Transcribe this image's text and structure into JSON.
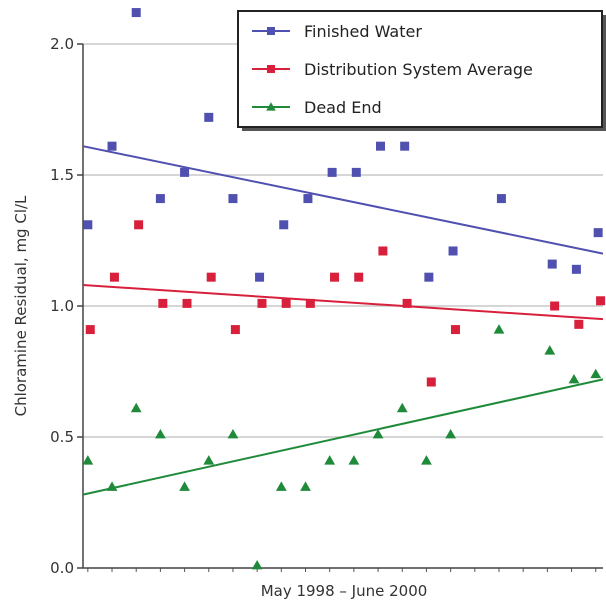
{
  "chart_data": {
    "type": "scatter",
    "title": "",
    "xlabel": "May 1998 – June 2000",
    "ylabel": "Chloramine Residual, mg Cl/L",
    "ylim": [
      0,
      2.0
    ],
    "xlim": [
      0,
      21.5
    ],
    "yticks": [
      "0.0",
      "0.5",
      "1.0",
      "1.5",
      "2.0"
    ],
    "grid": "horizontal",
    "legend": "top-right",
    "series": [
      {
        "name": "Finished Water",
        "color": "#5050b0",
        "marker": "square",
        "x": [
          0.2,
          1.2,
          2.2,
          3.2,
          4.2,
          5.2,
          6.2,
          7.3,
          8.3,
          9.3,
          10.3,
          11.3,
          12.3,
          13.3,
          14.3,
          15.3,
          17.3,
          19.4,
          20.4,
          21.3
        ],
        "y": [
          1.31,
          1.61,
          2.12,
          1.41,
          1.51,
          1.72,
          1.41,
          1.11,
          1.31,
          1.41,
          1.51,
          1.51,
          1.61,
          1.61,
          1.11,
          1.21,
          1.41,
          1.16,
          1.14,
          1.28
        ],
        "trend": [
          [
            0,
            1.61
          ],
          [
            21.5,
            1.2
          ]
        ]
      },
      {
        "name": "Distribution System Average",
        "color": "#d8203c",
        "marker": "square",
        "x": [
          0.3,
          1.3,
          2.3,
          3.3,
          4.3,
          5.3,
          6.3,
          7.4,
          8.4,
          9.4,
          10.4,
          11.4,
          12.4,
          13.4,
          14.4,
          15.4,
          19.5,
          20.5,
          21.4
        ],
        "y": [
          0.91,
          1.11,
          1.31,
          1.01,
          1.01,
          1.11,
          0.91,
          1.01,
          1.01,
          1.01,
          1.11,
          1.11,
          1.21,
          1.01,
          0.71,
          0.91,
          1.0,
          0.93,
          1.02
        ],
        "trend": [
          [
            0,
            1.08
          ],
          [
            21.5,
            0.95
          ]
        ]
      },
      {
        "name": "Dead End",
        "color": "#1f8a3a",
        "marker": "triangle",
        "x": [
          0.2,
          1.2,
          2.2,
          3.2,
          4.2,
          5.2,
          6.2,
          7.2,
          8.2,
          9.2,
          10.2,
          11.2,
          12.2,
          13.2,
          14.2,
          15.2,
          17.2,
          19.3,
          20.3,
          21.2
        ],
        "y": [
          0.41,
          0.31,
          0.61,
          0.51,
          0.31,
          0.41,
          0.51,
          0.01,
          0.31,
          0.31,
          0.41,
          0.41,
          0.51,
          0.61,
          0.41,
          0.51,
          0.91,
          0.83,
          0.72,
          0.74
        ],
        "trend": [
          [
            0,
            0.28
          ],
          [
            21.5,
            0.72
          ]
        ]
      }
    ]
  }
}
